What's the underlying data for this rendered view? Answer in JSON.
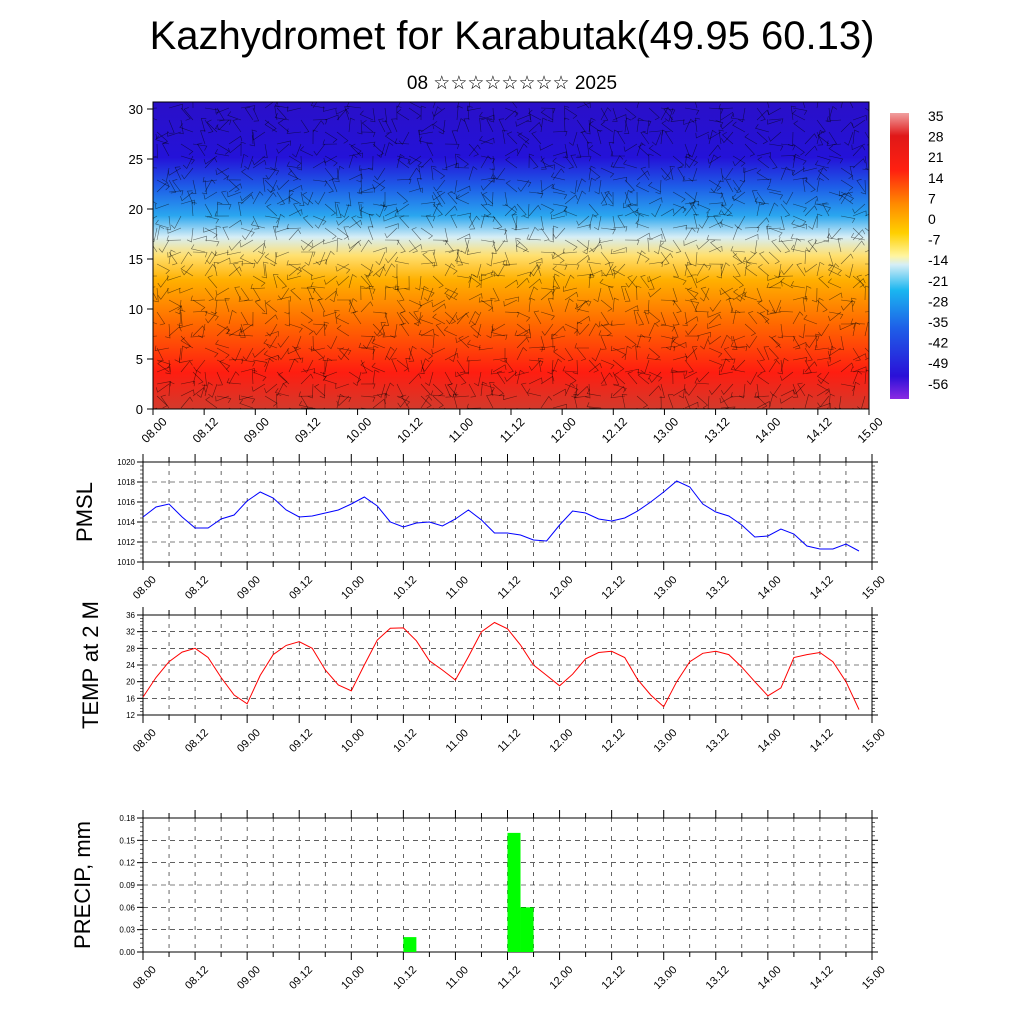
{
  "header": {
    "title": "Kazhydromet for Karabutak(49.95 60.13)",
    "subtitle": "08 ☆☆☆☆☆☆☆☆ 2025"
  },
  "chart_data": [
    {
      "type": "heatmap",
      "title": "",
      "xlabel": "",
      "ylabel": "",
      "x_ticks": [
        "08.00",
        "08.12",
        "09.00",
        "09.12",
        "10.00",
        "10.12",
        "11.00",
        "11.12",
        "12.00",
        "12.12",
        "13.00",
        "13.12",
        "14.00",
        "14.12",
        "15.00"
      ],
      "y_ticks": [
        0,
        5,
        10,
        15,
        20,
        25,
        30
      ],
      "ylim": [
        0,
        30.7
      ],
      "colorbar": {
        "labels": [
          "35",
          "28",
          "21",
          "14",
          "7",
          "0",
          "-7",
          "-14",
          "-21",
          "-28",
          "-35",
          "-42",
          "-49",
          "-56"
        ],
        "range": [
          -60,
          38
        ]
      },
      "approx_temperature_by_level": {
        "levels": [
          0,
          3,
          6,
          9,
          12,
          15,
          18,
          21,
          24,
          27,
          30
        ],
        "values": [
          26,
          24,
          20,
          15,
          8,
          0,
          -10,
          -28,
          -44,
          -55,
          -58
        ]
      },
      "overlay": "wind barbs"
    },
    {
      "type": "line",
      "ylabel": "PMSL",
      "ylim": [
        1010,
        1020
      ],
      "y_ticks": [
        "1010",
        "1012",
        "1014",
        "1016",
        "1018",
        "1020"
      ],
      "x_ticks": [
        "08.00",
        "08.12",
        "09.00",
        "09.12",
        "10.00",
        "10.12",
        "11.00",
        "11.12",
        "12.00",
        "12.12",
        "13.00",
        "13.12",
        "14.00",
        "14.12",
        "15.00"
      ],
      "series": [
        {
          "color": "#0000ff",
          "x_hours": [
            0,
            3,
            6,
            9,
            12,
            15,
            18,
            21,
            24,
            27,
            30,
            33,
            36,
            39,
            42,
            45,
            48,
            51,
            54,
            57,
            60,
            63,
            66,
            69,
            72,
            75,
            78,
            81,
            84,
            87,
            90,
            93,
            96,
            99,
            102,
            105,
            108,
            111,
            114,
            117,
            120,
            123,
            126,
            129,
            132,
            135,
            138,
            141,
            144,
            147,
            150,
            153,
            156,
            159,
            162,
            165
          ],
          "values": [
            1014.5,
            1015.5,
            1015.8,
            1014.5,
            1013.4,
            1013.4,
            1014.3,
            1014.7,
            1016.1,
            1017.0,
            1016.4,
            1015.2,
            1014.5,
            1014.6,
            1014.9,
            1015.2,
            1015.8,
            1016.5,
            1015.6,
            1014.0,
            1013.5,
            1013.9,
            1014.0,
            1013.6,
            1014.3,
            1015.2,
            1014.2,
            1012.9,
            1012.9,
            1012.7,
            1012.2,
            1012.1,
            1013.7,
            1015.1,
            1014.9,
            1014.3,
            1014.1,
            1014.4,
            1015.1,
            1016.0,
            1017.0,
            1018.1,
            1017.5,
            1015.8,
            1015.0,
            1014.6,
            1013.7,
            1012.5,
            1012.6,
            1013.3,
            1012.8,
            1011.6,
            1011.3,
            1011.3,
            1011.8,
            1011.1
          ]
        }
      ]
    },
    {
      "type": "line",
      "ylabel": "TEMP at 2 M",
      "ylim": [
        12,
        36
      ],
      "y_ticks": [
        "12",
        "16",
        "20",
        "24",
        "28",
        "32",
        "36"
      ],
      "x_ticks": [
        "08.00",
        "08.12",
        "09.00",
        "09.12",
        "10.00",
        "10.12",
        "11.00",
        "11.12",
        "12.00",
        "12.12",
        "13.00",
        "13.12",
        "14.00",
        "14.12",
        "15.00"
      ],
      "series": [
        {
          "color": "#ff0000",
          "x_hours": [
            0,
            3,
            6,
            9,
            12,
            15,
            18,
            21,
            24,
            27,
            30,
            33,
            36,
            39,
            42,
            45,
            48,
            51,
            54,
            57,
            60,
            63,
            66,
            69,
            72,
            75,
            78,
            81,
            84,
            87,
            90,
            93,
            96,
            99,
            102,
            105,
            108,
            111,
            114,
            117,
            120,
            123,
            126,
            129,
            132,
            135,
            138,
            141,
            144,
            147,
            150,
            153,
            156,
            159,
            162,
            165
          ],
          "values": [
            16.3,
            21.0,
            24.8,
            27.1,
            28.0,
            25.8,
            21.0,
            16.8,
            14.7,
            21.5,
            26.5,
            28.7,
            29.6,
            28.0,
            22.8,
            19.2,
            17.8,
            24.0,
            30.0,
            32.8,
            32.9,
            29.8,
            25.0,
            22.8,
            20.4,
            26.0,
            32.0,
            34.2,
            32.7,
            28.8,
            24.0,
            21.5,
            19.0,
            21.8,
            25.5,
            27.0,
            27.3,
            25.8,
            20.5,
            16.8,
            14.0,
            20.0,
            24.8,
            26.8,
            27.3,
            26.5,
            23.5,
            20.0,
            16.6,
            18.5,
            25.8,
            26.5,
            27.0,
            24.8,
            20.0,
            13.3
          ]
        }
      ]
    },
    {
      "type": "bar",
      "ylabel": "PRECIP, mm",
      "ylim": [
        0,
        0.18
      ],
      "y_ticks": [
        "0.00",
        "0.03",
        "0.06",
        "0.09",
        "0.12",
        "0.15",
        "0.18"
      ],
      "x_ticks": [
        "08.00",
        "08.12",
        "09.00",
        "09.12",
        "10.00",
        "10.12",
        "11.00",
        "11.12",
        "12.00",
        "12.12",
        "13.00",
        "13.12",
        "14.00",
        "14.12",
        "15.00"
      ],
      "bar_color": "#00ff00",
      "bars": [
        {
          "x_hours": 60,
          "value": 0.02
        },
        {
          "x_hours": 84,
          "value": 0.16
        },
        {
          "x_hours": 87,
          "value": 0.06
        }
      ]
    }
  ]
}
